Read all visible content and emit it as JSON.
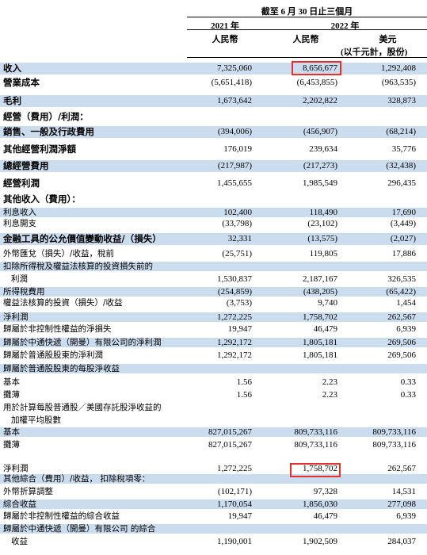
{
  "header": {
    "period": "截至 6 月 30 日止三個月",
    "year1": "2021 年",
    "year2": "2022 年",
    "col1": "人民幣",
    "col2": "人民幣",
    "col3": "美元",
    "col3_note": "(以千元計，股份)"
  },
  "rows": [
    {
      "label": "收入",
      "v": [
        "7,325,060",
        "8,656,677",
        "1,292,408"
      ]
    },
    {
      "label": "營業成本",
      "v": [
        "(5,651,418)",
        "(6,453,855)",
        "(963,535)"
      ]
    },
    {
      "label": "毛利",
      "v": [
        "1,673,642",
        "2,202,822",
        "328,873"
      ]
    },
    {
      "label": "經營（費用）/利潤：",
      "v": [
        "",
        "",
        ""
      ]
    },
    {
      "label": "銷售、一般及行政費用",
      "v": [
        "(394,006)",
        "(456,907)",
        "(68,214)"
      ]
    },
    {
      "label": "其他經營利潤淨額",
      "v": [
        "176,019",
        "239,634",
        "35,776"
      ]
    },
    {
      "label": "總經營費用",
      "v": [
        "(217,987)",
        "(217,273)",
        "(32,438)"
      ]
    },
    {
      "label": "經營利潤",
      "v": [
        "1,455,655",
        "1,985,549",
        "296,435"
      ]
    },
    {
      "label": "其他收入（費用）：",
      "v": [
        "",
        "",
        ""
      ]
    },
    {
      "label": "利息收入",
      "v": [
        "102,400",
        "118,490",
        "17,690"
      ]
    },
    {
      "label": "利息開支",
      "v": [
        "(33,798)",
        "(23,102)",
        "(3,449)"
      ]
    },
    {
      "label": "金融工具的公允價值變動收益/（損失）",
      "v": [
        "32,331",
        "(13,575)",
        "(2,027)"
      ]
    },
    {
      "label": "外幣匯兌（損失）/收益，稅前",
      "v": [
        "(25,751)",
        "119,805",
        "17,886"
      ]
    },
    {
      "label": "扣除所得稅及權益法核算的投資損失前的",
      "v": [
        "",
        "",
        ""
      ]
    },
    {
      "label": "利潤",
      "v": [
        "1,530,837",
        "2,187,167",
        "326,535"
      ]
    },
    {
      "label": "所得稅費用",
      "v": [
        "(254,859)",
        "(438,205)",
        "(65,422)"
      ]
    },
    {
      "label": "權益法核算的投資（損失）/收益",
      "v": [
        "(3,753)",
        "9,740",
        "1,454"
      ]
    },
    {
      "label": "淨利潤",
      "v": [
        "1,272,225",
        "1,758,702",
        "262,567"
      ]
    },
    {
      "label": "歸屬於非控制性權益的淨損失",
      "v": [
        "19,947",
        "46,479",
        "6,939"
      ]
    },
    {
      "label": "歸屬於中通快遞（開曼）有限公司的淨利潤",
      "v": [
        "1,292,172",
        "1,805,181",
        "269,506"
      ]
    },
    {
      "label": "歸屬於普通股股東的淨利潤",
      "v": [
        "1,292,172",
        "1,805,181",
        "269,506"
      ]
    },
    {
      "label": "歸屬於普通股股東的每股淨收益",
      "v": [
        "",
        "",
        ""
      ]
    },
    {
      "label": "基本",
      "v": [
        "1.56",
        "2.23",
        "0.33"
      ]
    },
    {
      "label": "攤薄",
      "v": [
        "1.56",
        "2.23",
        "0.33"
      ]
    },
    {
      "label": "用於計算每股普通股／美國存託股淨收益的",
      "v": [
        "",
        "",
        ""
      ]
    },
    {
      "label": "加權平均股數",
      "v": [
        "",
        "",
        ""
      ]
    },
    {
      "label": "基本",
      "v": [
        "827,015,267",
        "809,733,116",
        "809,733,116"
      ]
    },
    {
      "label": "攤薄",
      "v": [
        "827,015,267",
        "809,733,116",
        "809,733,116"
      ]
    },
    {
      "label": "淨利潤",
      "v": [
        "1,272,225",
        "1,758,702",
        "262,567"
      ]
    },
    {
      "label": "其他綜合（費用）/收益， 扣除稅項零：",
      "v": [
        "",
        "",
        ""
      ]
    },
    {
      "label": "外幣折算調整",
      "v": [
        "(102,171)",
        "97,328",
        "14,531"
      ]
    },
    {
      "label": "綜合收益",
      "v": [
        "1,170,054",
        "1,856,030",
        "277,098"
      ]
    },
    {
      "label": "歸屬於非控制性權益的綜合收益",
      "v": [
        "19,947",
        "46,479",
        "6,939"
      ]
    },
    {
      "label": "歸屬於中通快遞（開曼）有限公司 的綜合",
      "v": [
        "",
        "",
        ""
      ]
    },
    {
      "label": "收益",
      "v": [
        "1,190,001",
        "1,902,509",
        "284,037"
      ]
    }
  ]
}
